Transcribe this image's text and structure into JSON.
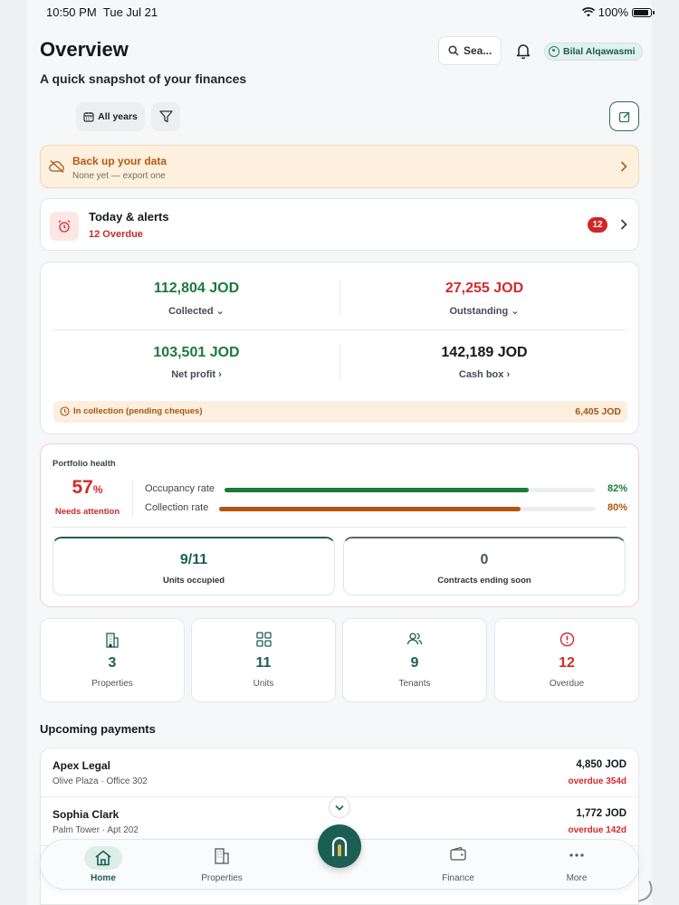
{
  "status": {
    "time": "10:50 PM",
    "date": "Tue Jul 21",
    "battery": "100%"
  },
  "header": {
    "title": "Overview",
    "subtitle": "A quick snapshot of your finances",
    "search_label": "Sea...",
    "user_name": "Bilal Alqawasmi"
  },
  "filters": {
    "years_label": "All years"
  },
  "backup": {
    "title": "Back up your data",
    "subtitle": "None yet — export one"
  },
  "alerts": {
    "title": "Today & alerts",
    "overdue_text": "12 Overdue",
    "badge": "12"
  },
  "finance": {
    "collected": {
      "amount": "112,804 JOD",
      "label": "Collected ⌄"
    },
    "outstanding": {
      "amount": "27,255 JOD",
      "label": "Outstanding ⌄"
    },
    "net_profit": {
      "amount": "103,501 JOD",
      "label": "Net profit ›"
    },
    "cash_box": {
      "amount": "142,189 JOD",
      "label": "Cash box ›"
    },
    "pending": {
      "label": "In collection (pending cheques)",
      "amount": "6,405 JOD"
    }
  },
  "health": {
    "title": "Portfolio health",
    "score": "57",
    "score_unit": "%",
    "score_label": "Needs attention",
    "occupancy": {
      "label": "Occupancy rate",
      "value": 82,
      "text": "82%"
    },
    "collection": {
      "label": "Collection rate",
      "value": 80,
      "text": "80%"
    },
    "units_occupied": {
      "value": "9/11",
      "label": "Units occupied"
    },
    "contracts_ending": {
      "value": "0",
      "label": "Contracts ending soon"
    }
  },
  "stats": [
    {
      "value": "3",
      "label": "Properties",
      "icon": "building-icon"
    },
    {
      "value": "11",
      "label": "Units",
      "icon": "grid-icon"
    },
    {
      "value": "9",
      "label": "Tenants",
      "icon": "users-icon"
    },
    {
      "value": "12",
      "label": "Overdue",
      "icon": "alert-circle-icon"
    }
  ],
  "payments": {
    "title": "Upcoming payments",
    "rows": [
      {
        "name": "Apex Legal",
        "place": "Olive Plaza · Office 302",
        "amount": "4,850 JOD",
        "overdue": "overdue 354d"
      },
      {
        "name": "Sophia Clark",
        "place": "Palm Tower · Apt 202",
        "amount": "1,772 JOD",
        "overdue": "overdue 142d"
      }
    ]
  },
  "tabs": {
    "home": "Home",
    "properties": "Properties",
    "finance": "Finance",
    "more": "More"
  },
  "colors": {
    "brand": "#1b5e54",
    "positive": "#1c7a3a",
    "negative": "#d42a2a",
    "warning": "#b35a10"
  }
}
